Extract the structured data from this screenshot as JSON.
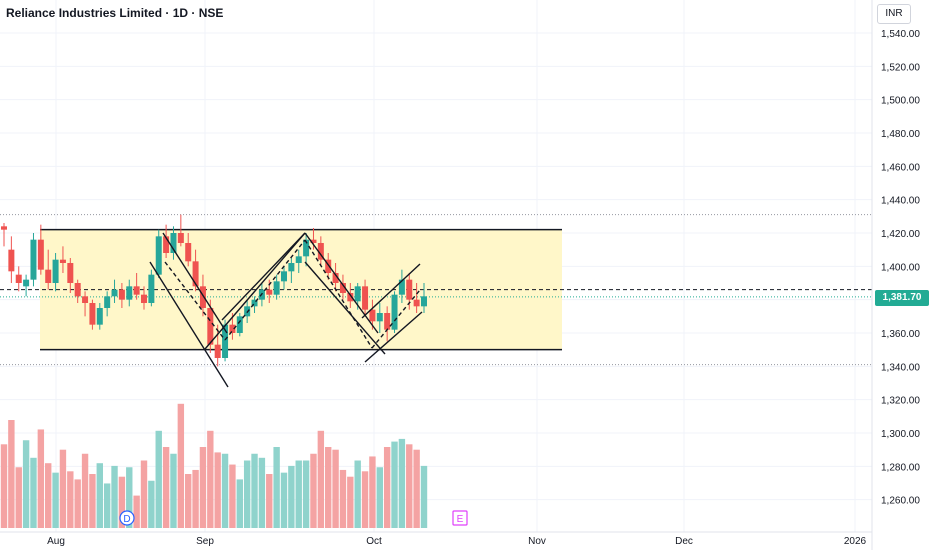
{
  "header": {
    "title": "Reliance Industries Limited · 1D · NSE",
    "currency_button": "INR"
  },
  "price_tag": {
    "value": "1,381.70",
    "color": "#22ab94"
  },
  "markers": {
    "dividend": "D",
    "earnings": "E"
  },
  "colors": {
    "up": "#26a69a",
    "down": "#ef5350",
    "vol_up": "#8fd3cc",
    "vol_down": "#f4a3a3",
    "zone": "#fff7c9",
    "lines": "#131722"
  },
  "chart_data": {
    "type": "candlestick",
    "yaxis": {
      "labels": [
        "1,540.00",
        "1,520.00",
        "1,500.00",
        "1,480.00",
        "1,460.00",
        "1,440.00",
        "1,420.00",
        "1,400.00",
        "1,380.00",
        "1,360.00",
        "1,340.00",
        "1,320.00",
        "1,300.00",
        "1,280.00",
        "1,260.00"
      ],
      "values": [
        1540,
        1520,
        1500,
        1480,
        1460,
        1440,
        1420,
        1400,
        1380,
        1360,
        1340,
        1320,
        1300,
        1280,
        1260
      ],
      "ylim": [
        1253,
        1547
      ]
    },
    "xaxis": {
      "labels": [
        "Aug",
        "Sep",
        "Oct",
        "Nov",
        "Dec",
        "2026"
      ]
    },
    "horizontal_levels": {
      "resistance": 1422,
      "support": 1350,
      "dashed_level": 1386,
      "dotted_high": 1431,
      "dotted_low": 1341,
      "last_price": 1381.7
    },
    "candles": [
      [
        1424,
        1426,
        1412,
        1422
      ],
      [
        1410,
        1418,
        1390,
        1397
      ],
      [
        1395,
        1400,
        1385,
        1390
      ],
      [
        1388,
        1395,
        1382,
        1392
      ],
      [
        1392,
        1420,
        1388,
        1416
      ],
      [
        1416,
        1425,
        1395,
        1398
      ],
      [
        1398,
        1410,
        1386,
        1390
      ],
      [
        1390,
        1408,
        1385,
        1404
      ],
      [
        1404,
        1412,
        1396,
        1402
      ],
      [
        1402,
        1405,
        1384,
        1390
      ],
      [
        1390,
        1392,
        1378,
        1382
      ],
      [
        1382,
        1385,
        1370,
        1378
      ],
      [
        1378,
        1380,
        1362,
        1365
      ],
      [
        1365,
        1378,
        1362,
        1375
      ],
      [
        1375,
        1385,
        1370,
        1382
      ],
      [
        1382,
        1392,
        1378,
        1386
      ],
      [
        1386,
        1390,
        1375,
        1380
      ],
      [
        1380,
        1392,
        1376,
        1388
      ],
      [
        1388,
        1396,
        1380,
        1383
      ],
      [
        1383,
        1388,
        1374,
        1378
      ],
      [
        1378,
        1398,
        1376,
        1395
      ],
      [
        1395,
        1422,
        1393,
        1418
      ],
      [
        1418,
        1425,
        1405,
        1408
      ],
      [
        1408,
        1424,
        1404,
        1420
      ],
      [
        1420,
        1431,
        1412,
        1414
      ],
      [
        1414,
        1420,
        1400,
        1403
      ],
      [
        1403,
        1410,
        1385,
        1388
      ],
      [
        1388,
        1395,
        1370,
        1375
      ],
      [
        1375,
        1380,
        1348,
        1353
      ],
      [
        1353,
        1365,
        1340,
        1345
      ],
      [
        1345,
        1368,
        1343,
        1365
      ],
      [
        1365,
        1372,
        1356,
        1360
      ],
      [
        1360,
        1372,
        1358,
        1370
      ],
      [
        1370,
        1380,
        1366,
        1376
      ],
      [
        1376,
        1382,
        1372,
        1380
      ],
      [
        1380,
        1390,
        1376,
        1386
      ],
      [
        1386,
        1392,
        1378,
        1383
      ],
      [
        1383,
        1395,
        1380,
        1391
      ],
      [
        1391,
        1400,
        1386,
        1397
      ],
      [
        1397,
        1405,
        1390,
        1402
      ],
      [
        1402,
        1410,
        1396,
        1406
      ],
      [
        1406,
        1420,
        1400,
        1416
      ],
      [
        1416,
        1423,
        1410,
        1414
      ],
      [
        1414,
        1418,
        1400,
        1404
      ],
      [
        1404,
        1408,
        1392,
        1396
      ],
      [
        1396,
        1402,
        1385,
        1390
      ],
      [
        1390,
        1395,
        1380,
        1384
      ],
      [
        1384,
        1390,
        1375,
        1379
      ],
      [
        1379,
        1390,
        1374,
        1388
      ],
      [
        1388,
        1392,
        1370,
        1374
      ],
      [
        1374,
        1380,
        1362,
        1367
      ],
      [
        1367,
        1378,
        1360,
        1372
      ],
      [
        1372,
        1376,
        1355,
        1362
      ],
      [
        1362,
        1385,
        1360,
        1383
      ],
      [
        1383,
        1398,
        1378,
        1392
      ],
      [
        1392,
        1396,
        1374,
        1380
      ],
      [
        1380,
        1390,
        1372,
        1376
      ],
      [
        1376,
        1390,
        1372,
        1382
      ]
    ],
    "volume_relative": [
      0.62,
      0.8,
      0.45,
      0.65,
      0.52,
      0.73,
      0.48,
      0.41,
      0.58,
      0.42,
      0.36,
      0.55,
      0.4,
      0.48,
      0.33,
      0.46,
      0.38,
      0.45,
      0.24,
      0.5,
      0.35,
      0.72,
      0.6,
      0.55,
      0.92,
      0.4,
      0.43,
      0.6,
      0.72,
      0.56,
      0.55,
      0.47,
      0.36,
      0.5,
      0.55,
      0.52,
      0.4,
      0.6,
      0.41,
      0.46,
      0.5,
      0.5,
      0.55,
      0.72,
      0.6,
      0.58,
      0.43,
      0.38,
      0.5,
      0.42,
      0.53,
      0.45,
      0.6,
      0.64,
      0.66,
      0.62,
      0.58,
      0.46
    ]
  }
}
